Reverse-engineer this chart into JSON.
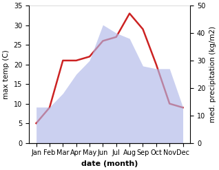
{
  "months": [
    "Jan",
    "Feb",
    "Mar",
    "Apr",
    "May",
    "Jun",
    "Jul",
    "Aug",
    "Sep",
    "Oct",
    "Nov",
    "Dec"
  ],
  "max_temp": [
    5,
    9,
    21,
    21,
    22,
    26,
    27,
    33,
    29,
    20,
    10,
    9
  ],
  "precipitation": [
    13,
    13,
    18,
    25,
    30,
    43,
    40,
    38,
    28,
    27,
    27,
    13
  ],
  "temp_ylim": [
    0,
    35
  ],
  "precip_ylim": [
    0,
    50
  ],
  "temp_yticks": [
    0,
    5,
    10,
    15,
    20,
    25,
    30,
    35
  ],
  "precip_yticks": [
    0,
    10,
    20,
    30,
    40,
    50
  ],
  "fill_color": "#b0b8e8",
  "fill_alpha": 0.65,
  "line_color": "#cc2222",
  "line_width": 1.8,
  "xlabel": "date (month)",
  "ylabel_left": "max temp (C)",
  "ylabel_right": "med. precipitation (kg/m2)",
  "bg_color": "#ffffff",
  "xlabel_fontsize": 8,
  "ylabel_fontsize": 7.5,
  "tick_fontsize": 7
}
